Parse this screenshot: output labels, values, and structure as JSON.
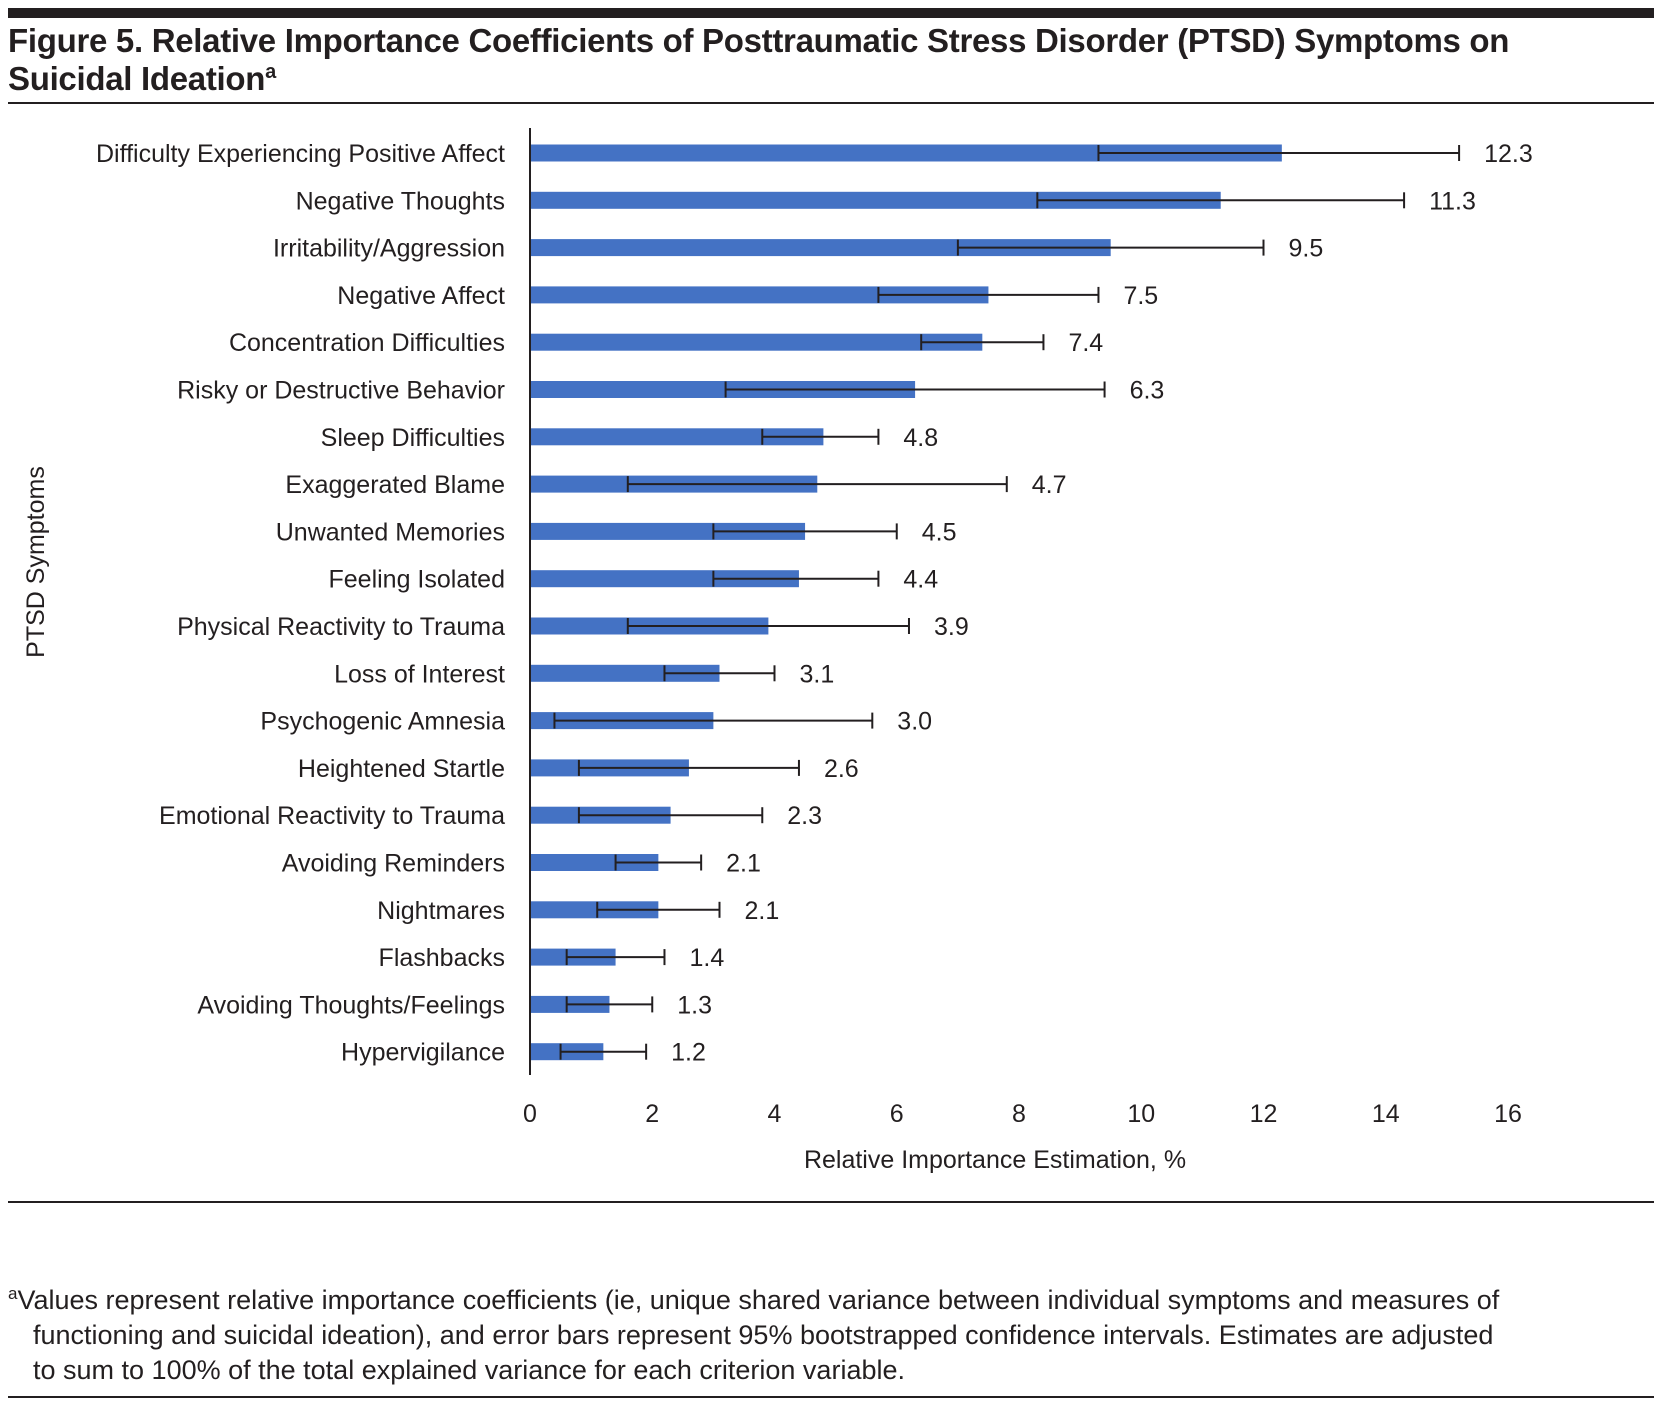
{
  "figure": {
    "title_main": "Figure 5. Relative Importance Coefficients of Posttraumatic Stress Disorder (PTSD) Symptoms on",
    "title_line2": "Suicidal Ideation",
    "title_superscript": "a",
    "footnote_marker": "a",
    "footnote_lines": [
      "Values represent relative importance coefficients (ie, unique shared variance between individual symptoms and measures of",
      "functioning and suicidal ideation), and error bars represent 95% bootstrapped confidence intervals. Estimates are adjusted",
      "to sum to 100% of the total explained variance for each criterion variable."
    ]
  },
  "chart_data": {
    "type": "bar",
    "orientation": "horizontal",
    "title": "Relative Importance Coefficients of Posttraumatic Stress Disorder (PTSD) Symptoms on Suicidal Ideation",
    "xlabel": "Relative Importance Estimation, %",
    "ylabel": "PTSD Symptoms",
    "xlim": [
      0,
      16
    ],
    "xticks": [
      0,
      2,
      4,
      6,
      8,
      10,
      12,
      14,
      16
    ],
    "grid": false,
    "bar_color": "#4472c4",
    "errorbar_color": "#231f20",
    "categories": [
      "Difficulty Experiencing Positive Affect",
      "Negative Thoughts",
      "Irritability/Aggression",
      "Negative Affect",
      "Concentration Difficulties",
      "Risky or Destructive Behavior",
      "Sleep Difficulties",
      "Exaggerated Blame",
      "Unwanted Memories",
      "Feeling Isolated",
      "Physical Reactivity to Trauma",
      "Loss of Interest",
      "Psychogenic Amnesia",
      "Heightened Startle",
      "Emotional Reactivity to Trauma",
      "Avoiding Reminders",
      "Nightmares",
      "Flashbacks",
      "Avoiding Thoughts/Feelings",
      "Hypervigilance"
    ],
    "values": [
      12.3,
      11.3,
      9.5,
      7.5,
      7.4,
      6.3,
      4.8,
      4.7,
      4.5,
      4.4,
      3.9,
      3.1,
      3.0,
      2.6,
      2.3,
      2.1,
      2.1,
      1.4,
      1.3,
      1.2
    ],
    "value_labels": [
      "12.3",
      "11.3",
      "9.5",
      "7.5",
      "7.4",
      "6.3",
      "4.8",
      "4.7",
      "4.5",
      "4.4",
      "3.9",
      "3.1",
      "3.0",
      "2.6",
      "2.3",
      "2.1",
      "2.1",
      "1.4",
      "1.3",
      "1.2"
    ],
    "ci_lower": [
      9.3,
      8.3,
      7.0,
      5.7,
      6.4,
      3.2,
      3.8,
      1.6,
      3.0,
      3.0,
      1.6,
      2.2,
      0.4,
      0.8,
      0.8,
      1.4,
      1.1,
      0.6,
      0.6,
      0.5
    ],
    "ci_upper": [
      15.2,
      14.3,
      12.0,
      9.3,
      8.4,
      9.4,
      5.7,
      7.8,
      6.0,
      5.7,
      6.2,
      4.0,
      5.6,
      4.4,
      3.8,
      2.8,
      3.1,
      2.2,
      2.0,
      1.9
    ]
  }
}
